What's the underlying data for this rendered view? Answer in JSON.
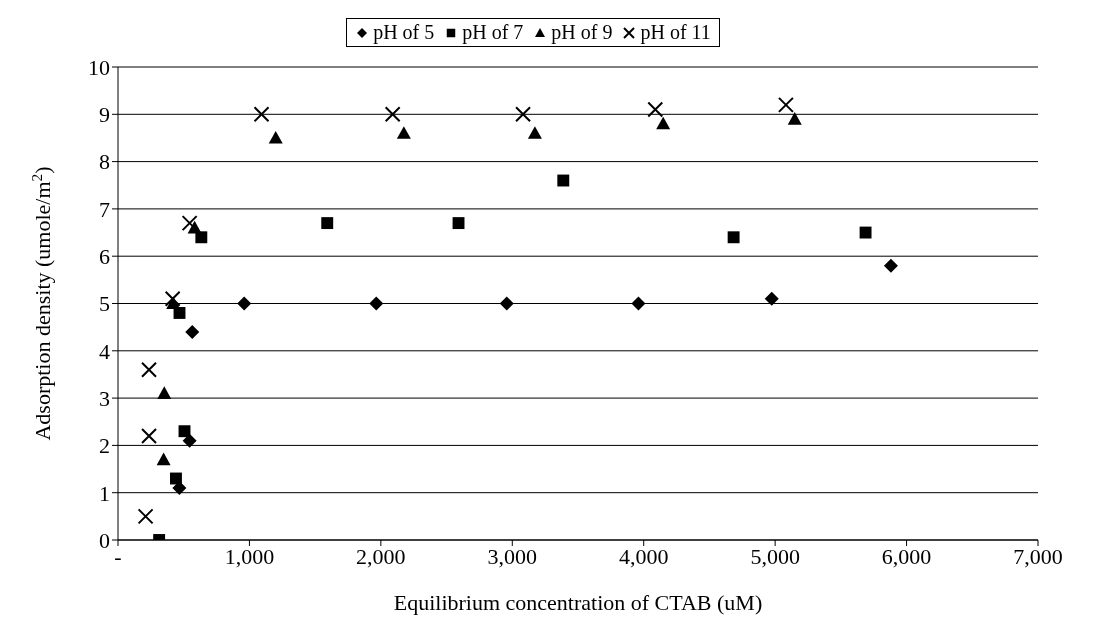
{
  "chart_data": {
    "type": "scatter",
    "xlabel": "Equilibrium concentration of CTAB (uM)",
    "ylabel": "Adsorption density (umole/m$^{2}$)",
    "xlim": [
      0,
      7000
    ],
    "xticks": [
      {
        "value": 0,
        "label": "-"
      },
      {
        "value": 1000,
        "label": "1,000"
      },
      {
        "value": 2000,
        "label": "2,000"
      },
      {
        "value": 3000,
        "label": "3,000"
      },
      {
        "value": 4000,
        "label": "4,000"
      },
      {
        "value": 5000,
        "label": "5,000"
      },
      {
        "value": 6000,
        "label": "6,000"
      },
      {
        "value": 7000,
        "label": "7,000"
      }
    ],
    "ylim": [
      0,
      10
    ],
    "yticks": [
      0,
      1,
      2,
      3,
      4,
      5,
      6,
      7,
      8,
      9,
      10
    ],
    "grid": "y",
    "legend": "top",
    "series": [
      {
        "name": "pH of 5",
        "color": "#000000",
        "marker": "diamond",
        "x": [
          467,
          545,
          565,
          960,
          1965,
          2958,
          3960,
          4974,
          5881
        ],
        "values": [
          1.1,
          2.1,
          4.4,
          5.0,
          5.0,
          5.0,
          5.0,
          5.1,
          5.8
        ]
      },
      {
        "name": "pH of 7",
        "color": "#000000",
        "marker": "square",
        "x": [
          313,
          441,
          468,
          506,
          634,
          1592,
          2591,
          3388,
          4684,
          5688
        ],
        "values": [
          0.0,
          1.3,
          4.8,
          2.3,
          6.4,
          6.7,
          6.7,
          7.6,
          6.4,
          6.5
        ]
      },
      {
        "name": "pH of 9",
        "color": "#000000",
        "marker": "triangle",
        "x": [
          347,
          352,
          420,
          583,
          1200,
          2175,
          3172,
          4148,
          5149
        ],
        "values": [
          1.7,
          3.1,
          5.0,
          6.6,
          8.5,
          8.6,
          8.6,
          8.8,
          8.9
        ]
      },
      {
        "name": "pH of 11",
        "color": "#000000",
        "marker": "cross",
        "x": [
          210,
          236,
          236,
          416,
          545,
          1092,
          2090,
          3082,
          4088,
          5082
        ],
        "values": [
          0.5,
          2.2,
          3.6,
          5.1,
          6.7,
          9.0,
          9.0,
          9.0,
          9.1,
          9.2
        ]
      }
    ]
  }
}
